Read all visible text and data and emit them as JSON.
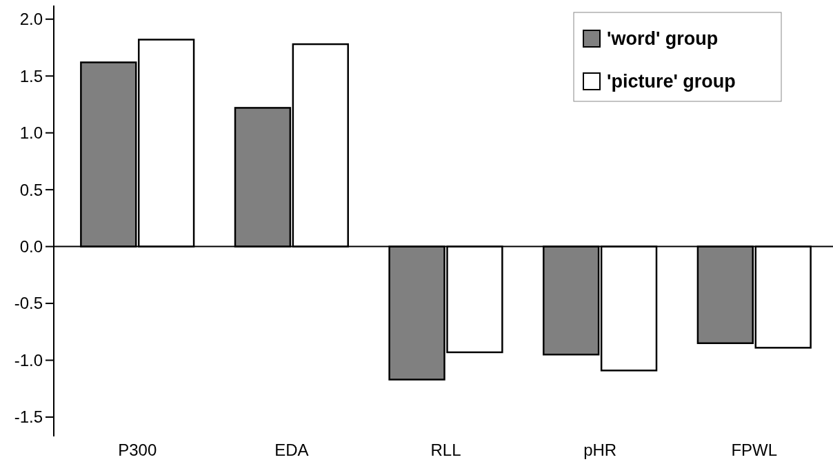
{
  "chart_data": {
    "type": "bar",
    "categories": [
      "P300",
      "EDA",
      "RLL",
      "pHR",
      "FPWL"
    ],
    "series": [
      {
        "name": "'word' group",
        "color": "#808080",
        "values": [
          1.62,
          1.22,
          -1.17,
          -0.95,
          -0.85
        ]
      },
      {
        "name": "'picture' group",
        "color": "#ffffff",
        "values": [
          1.82,
          1.78,
          -0.93,
          -1.09,
          -0.89
        ]
      }
    ],
    "ylim": [
      -1.67,
      2.12
    ],
    "yticks": [
      -1.5,
      {
        "value": -1,
        "label": "-1.0"
      },
      -0.5,
      {
        "value": 0,
        "label": "0.0"
      },
      0.5,
      {
        "value": 1,
        "label": "1.0"
      },
      1.5,
      {
        "value": 2,
        "label": "2.0"
      }
    ],
    "legend": "top right"
  }
}
